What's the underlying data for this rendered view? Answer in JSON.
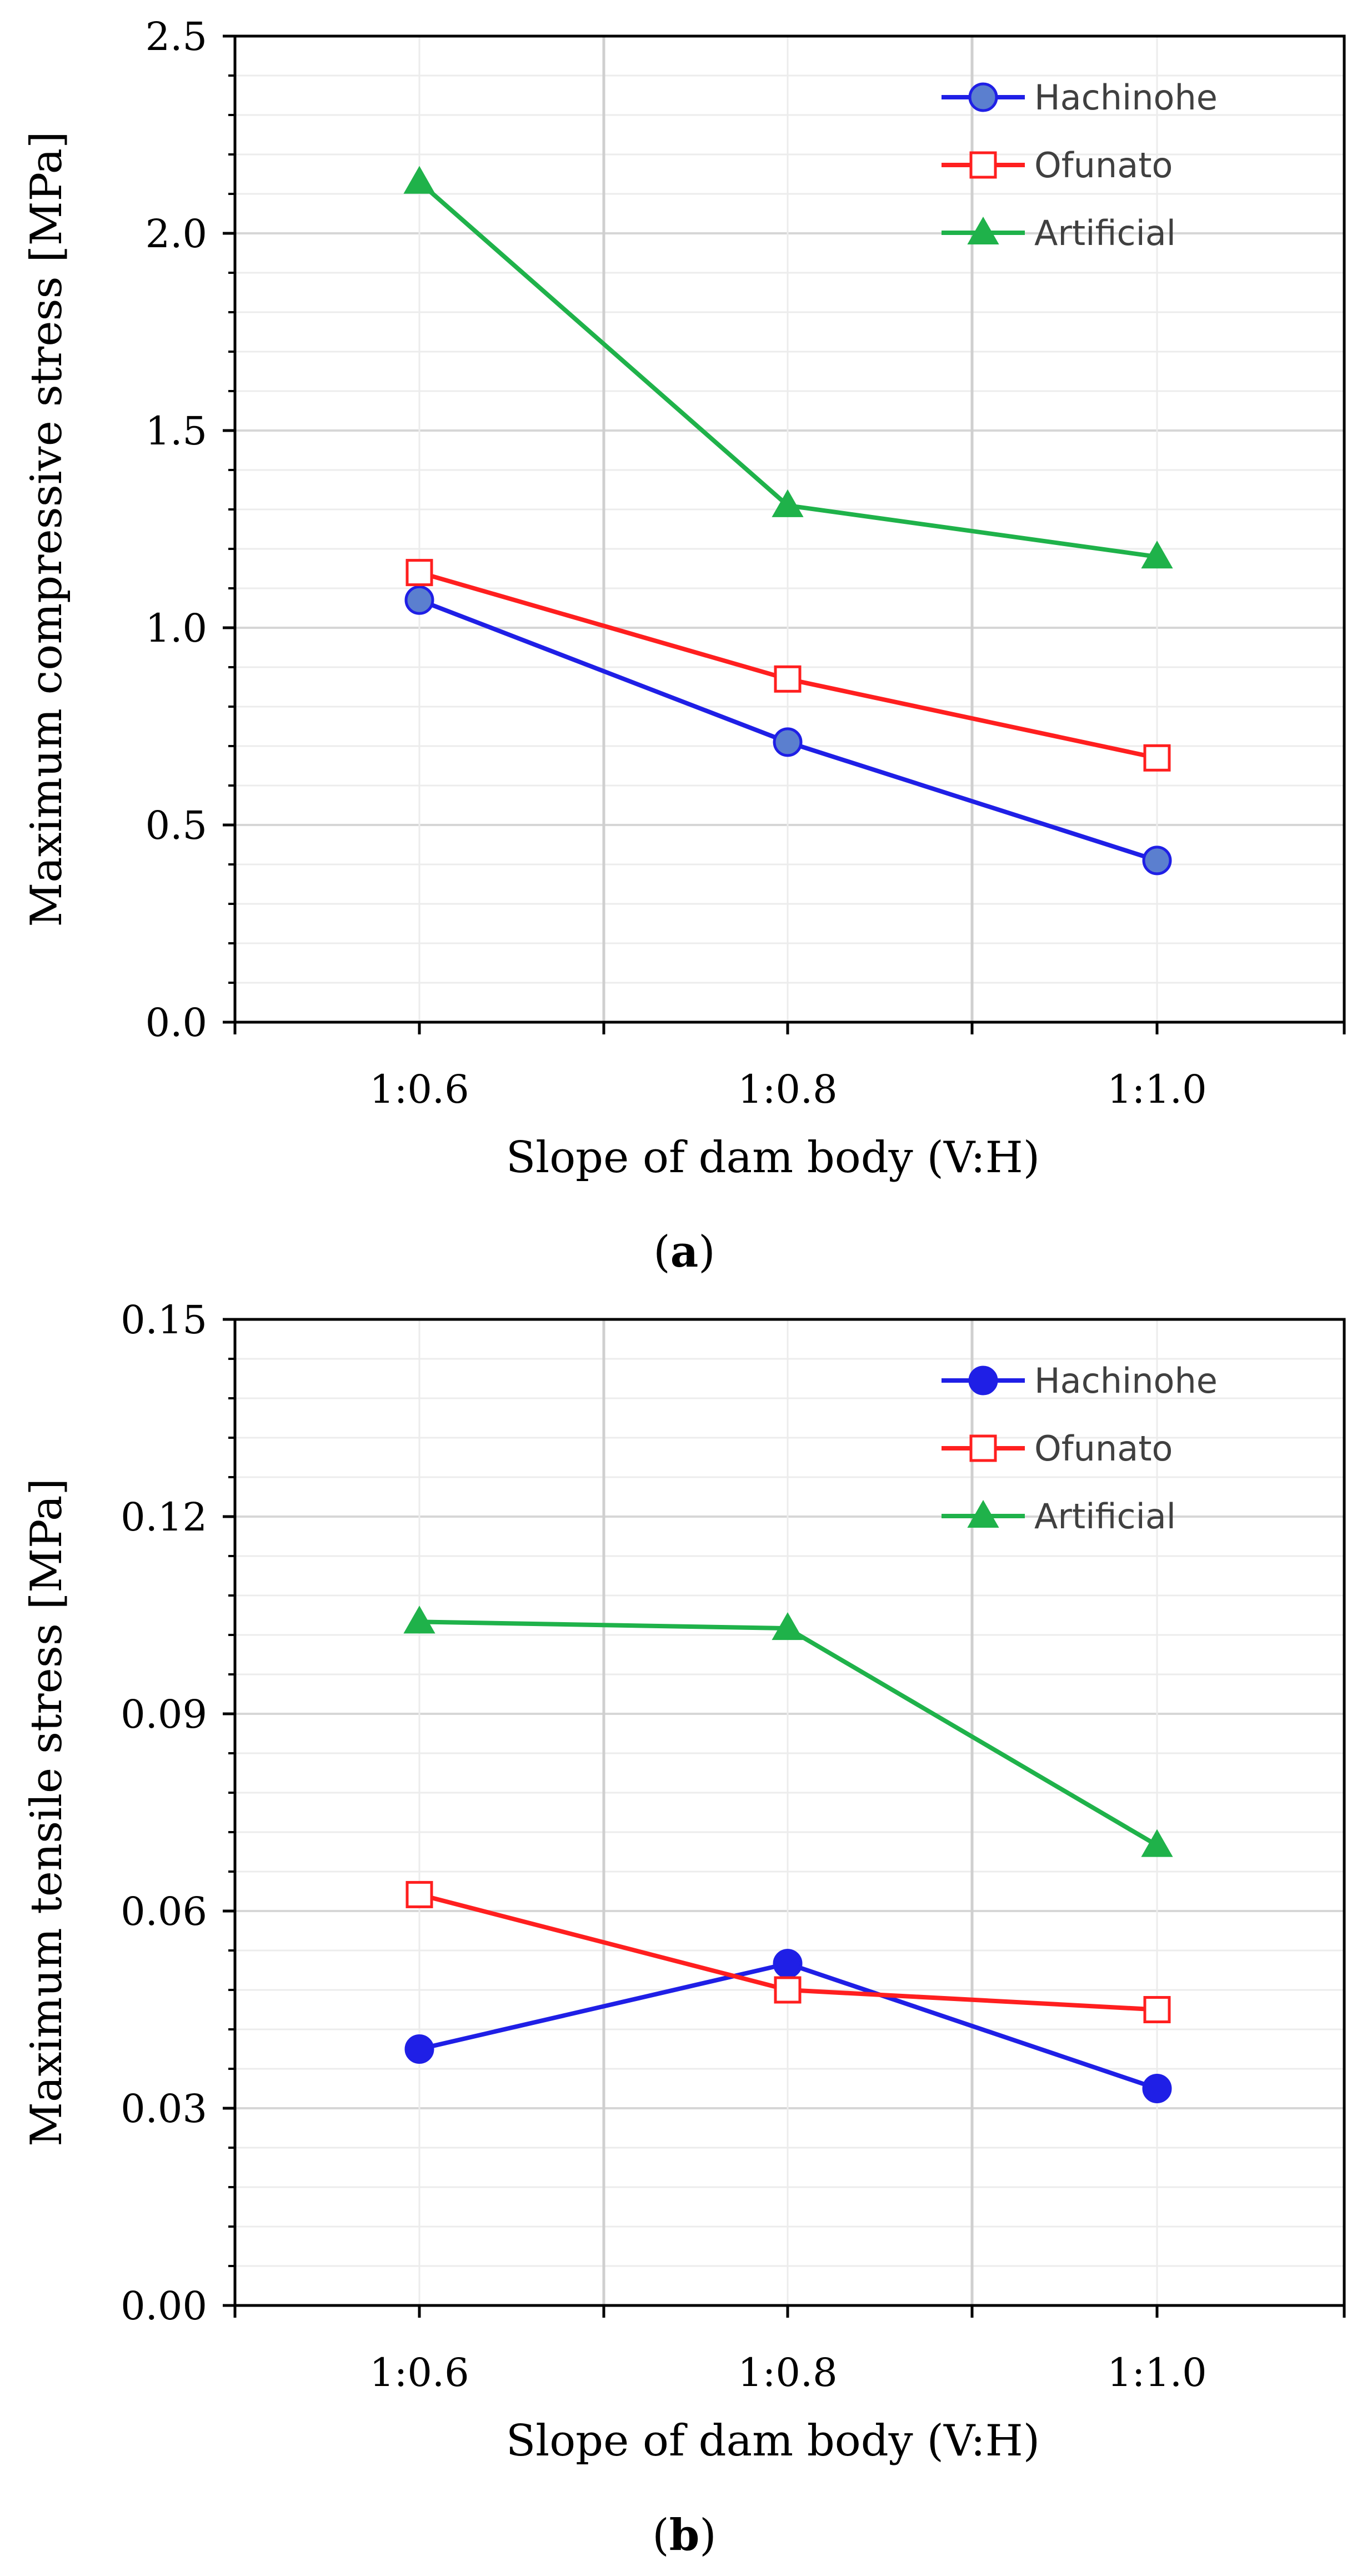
{
  "chart_data": [
    {
      "type": "line",
      "caption_prefix": "(",
      "caption_letter": "a",
      "caption_suffix": ")",
      "xlabel": "Slope of dam body (V:H)",
      "ylabel": "Maximum compressive stress [MPa]",
      "categories": [
        "1:0.6",
        "1:0.8",
        "1:1.0"
      ],
      "ylim": [
        0,
        2.5
      ],
      "yticks": [
        "0.0",
        "0.5",
        "1.0",
        "1.5",
        "2.0",
        "2.5"
      ],
      "series": [
        {
          "name": "Hachinohe",
          "color": "#1f1fe6",
          "marker": "circle",
          "marker_fill": "#5b7fcf",
          "values": [
            1.07,
            0.71,
            0.41
          ]
        },
        {
          "name": "Ofunato",
          "color": "#ff1f1f",
          "marker": "square-open",
          "marker_fill": "#ffffff",
          "values": [
            1.14,
            0.87,
            0.67
          ]
        },
        {
          "name": "Artificial",
          "color": "#1fb24a",
          "marker": "triangle",
          "marker_fill": "#1fb24a",
          "values": [
            2.13,
            1.31,
            1.18
          ]
        }
      ]
    },
    {
      "type": "line",
      "caption_prefix": "(",
      "caption_letter": "b",
      "caption_suffix": ")",
      "xlabel": "Slope of dam body (V:H)",
      "ylabel": "Maximum tensile stress [MPa]",
      "categories": [
        "1:0.6",
        "1:0.8",
        "1:1.0"
      ],
      "ylim": [
        0,
        0.15
      ],
      "yticks": [
        "0.00",
        "0.03",
        "0.06",
        "0.09",
        "0.12",
        "0.15"
      ],
      "series": [
        {
          "name": "Hachinohe",
          "color": "#1f1fe6",
          "marker": "circle",
          "marker_fill": "#1f1fe6",
          "values": [
            0.039,
            0.052,
            0.033
          ]
        },
        {
          "name": "Ofunato",
          "color": "#ff1f1f",
          "marker": "square-open",
          "marker_fill": "#ffffff",
          "values": [
            0.0625,
            0.048,
            0.045
          ]
        },
        {
          "name": "Artificial",
          "color": "#1fb24a",
          "marker": "triangle",
          "marker_fill": "#1fb24a",
          "values": [
            0.104,
            0.103,
            0.07
          ]
        }
      ]
    }
  ]
}
